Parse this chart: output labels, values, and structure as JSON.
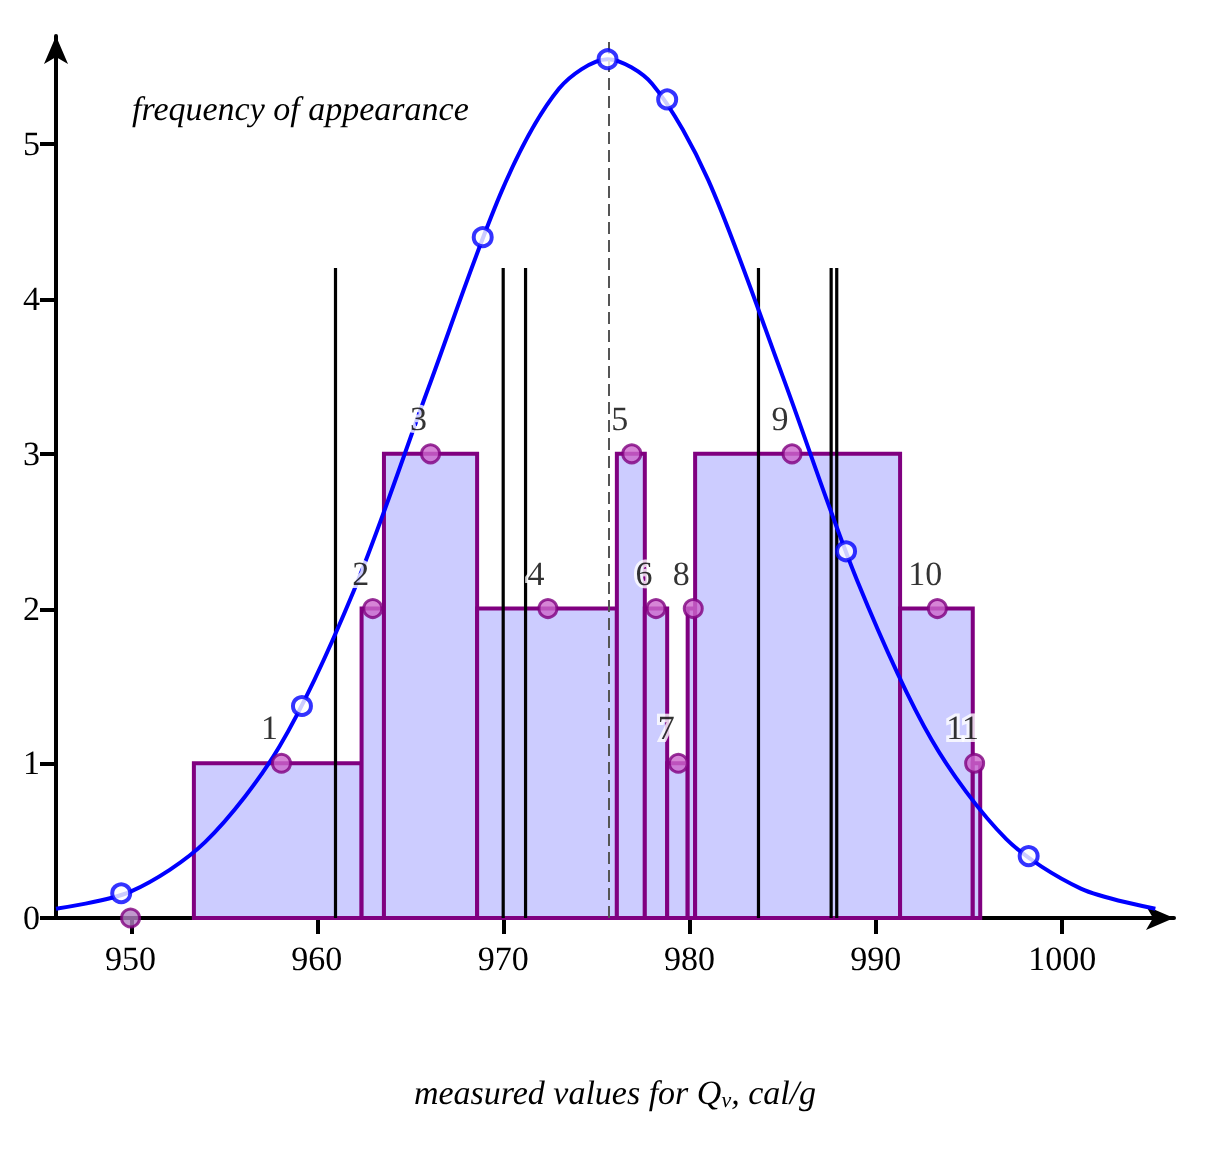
{
  "chart_data": {
    "type": "histogram",
    "xlabel": "measured values for Q$_{v}$, cal/g",
    "ylabel": "frequency of appearance",
    "bins": [
      953.4,
      962.4,
      963.6,
      968.6,
      976.1,
      977.6,
      978.8,
      979.9,
      980.3,
      991.3,
      995.2,
      995.6
    ],
    "values": [
      1,
      2,
      3,
      2,
      3,
      2,
      1,
      2,
      3,
      2,
      1
    ],
    "color": "#ccccff",
    "series": [
      {
        "type": "bar",
        "x": [
          961.0,
          970.0,
          971.2,
          983.7,
          987.6,
          987.9
        ],
        "values": [
          4.2,
          4.2,
          4.2,
          4.2,
          4.2,
          4.2
        ],
        "color": "#000000"
      },
      {
        "type": "line",
        "x": [
          946,
          950,
          954,
          958,
          962,
          966,
          970,
          973,
          975.6,
          978,
          981,
          985,
          989,
          993,
          997,
          1001,
          1005
        ],
        "values": [
          0.06,
          0.17,
          0.49,
          1.11,
          2.12,
          3.43,
          4.72,
          5.36,
          5.55,
          5.39,
          4.77,
          3.5,
          2.18,
          1.15,
          0.51,
          0.19,
          0.06
        ],
        "color": "#0000ff",
        "marker": "none"
      },
      {
        "type": "scatter",
        "x": [
          949.5,
          959.2,
          968.9,
          975.6,
          978.8,
          988.4,
          998.2
        ],
        "values": [
          0.16,
          1.37,
          4.4,
          5.55,
          5.29,
          2.37,
          0.4
        ],
        "color": "#0000ff",
        "marker": "circle"
      },
      {
        "type": "scatter",
        "x": [
          958.1,
          963.0,
          966.1,
          972.4,
          976.9,
          978.2,
          979.4,
          980.2,
          985.5,
          993.3,
          995.3
        ],
        "values": [
          1,
          2,
          3,
          2,
          3,
          2,
          1,
          2,
          3,
          2,
          1
        ],
        "color": "#cc66cc",
        "marker": "circle"
      },
      {
        "type": "scatter",
        "x": [
          950
        ],
        "values": [
          0
        ],
        "color": "#b080c0",
        "marker": "circle"
      }
    ],
    "annotations": [
      {
        "text": "1",
        "x": 958.1,
        "y": 1
      },
      {
        "text": "2",
        "x": 963.0,
        "y": 2
      },
      {
        "text": "3",
        "x": 966.1,
        "y": 3
      },
      {
        "text": "4",
        "x": 972.4,
        "y": 2
      },
      {
        "text": "5",
        "x": 976.9,
        "y": 3
      },
      {
        "text": "6",
        "x": 978.2,
        "y": 2
      },
      {
        "text": "7",
        "x": 979.4,
        "y": 1
      },
      {
        "text": "8",
        "x": 980.2,
        "y": 2
      },
      {
        "text": "9",
        "x": 985.5,
        "y": 3
      },
      {
        "text": "10",
        "x": 993.3,
        "y": 2
      },
      {
        "text": "11",
        "x": 995.3,
        "y": 1
      }
    ],
    "ref_lines": [
      {
        "axis": "x",
        "value": 975.7,
        "color": "#555555",
        "line_style": "dashed"
      }
    ],
    "xlim": [
      946,
      1006
    ],
    "ylim": [
      0,
      5.7
    ],
    "xticks": [
      950,
      960,
      970,
      980,
      990,
      1000
    ],
    "yticks": [
      0,
      1,
      2,
      3,
      4,
      5
    ],
    "grid": false
  }
}
